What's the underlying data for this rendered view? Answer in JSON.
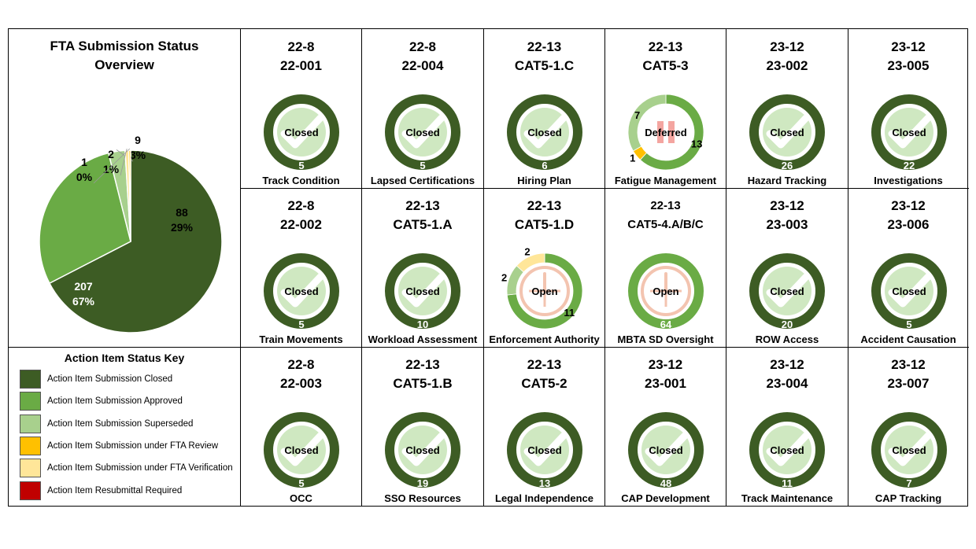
{
  "overview": {
    "title_line1": "FTA Submission Status",
    "title_line2": "Overview"
  },
  "colors": {
    "closed": "#3d5c24",
    "approved": "#6aab45",
    "superseded": "#a8d08d",
    "under_review": "#ffc000",
    "under_verification": "#ffe699",
    "resubmittal": "#c00000"
  },
  "chart_data": {
    "type": "pie",
    "title": "FTA Submission Status Overview",
    "slices": [
      {
        "status": "closed",
        "count": "207",
        "pct": "67%",
        "value": 207
      },
      {
        "status": "approved",
        "count": "88",
        "pct": "29%",
        "value": 88
      },
      {
        "status": "superseded",
        "count": "9",
        "pct": "3%",
        "value": 9
      },
      {
        "status": "under_verification",
        "count": "2",
        "pct": "1%",
        "value": 2
      },
      {
        "status": "under_review",
        "count": "1",
        "pct": "0%",
        "value": 1
      }
    ]
  },
  "key": {
    "title": "Action Item Status Key",
    "items": [
      {
        "status": "closed",
        "label": "Action Item Submission Closed"
      },
      {
        "status": "approved",
        "label": "Action Item Submission Approved"
      },
      {
        "status": "superseded",
        "label": "Action Item Submission Superseded"
      },
      {
        "status": "under_review",
        "label": "Action Item Submission under FTA Review"
      },
      {
        "status": "under_verification",
        "label": "Action Item Submission under FTA Verification"
      },
      {
        "status": "resubmittal",
        "label": "Action Item Resubmittal Required"
      }
    ]
  },
  "cells": [
    {
      "line1": "22-8",
      "line2": "22-001",
      "status_text": "Closed",
      "count": "5",
      "name": "Track Condition",
      "segments": [
        {
          "status": "closed",
          "value": 5
        }
      ]
    },
    {
      "line1": "22-8",
      "line2": "22-004",
      "status_text": "Closed",
      "count": "5",
      "name": "Lapsed Certifications",
      "segments": [
        {
          "status": "closed",
          "value": 5
        }
      ]
    },
    {
      "line1": "22-13",
      "line2": "CAT5-1.C",
      "status_text": "Closed",
      "count": "6",
      "name": "Hiring Plan",
      "segments": [
        {
          "status": "closed",
          "value": 6
        }
      ]
    },
    {
      "line1": "22-13",
      "line2": "CAT5-3",
      "status_text": "Deferred",
      "count": "",
      "name": "Fatigue Management",
      "icon": "pause",
      "segments": [
        {
          "status": "approved",
          "value": 13,
          "label": "13"
        },
        {
          "status": "under_review",
          "value": 1,
          "label": "1"
        },
        {
          "status": "superseded",
          "value": 7,
          "label": "7"
        }
      ]
    },
    {
      "line1": "23-12",
      "line2": "23-002",
      "status_text": "Closed",
      "count": "26",
      "name": "Hazard Tracking",
      "segments": [
        {
          "status": "closed",
          "value": 26
        }
      ]
    },
    {
      "line1": "23-12",
      "line2": "23-005",
      "status_text": "Closed",
      "count": "22",
      "name": "Investigations",
      "segments": [
        {
          "status": "closed",
          "value": 22
        }
      ]
    },
    {
      "line1": "22-8",
      "line2": "22-002",
      "status_text": "Closed",
      "count": "5",
      "name": "Train Movements",
      "segments": [
        {
          "status": "closed",
          "value": 5
        }
      ]
    },
    {
      "line1": "22-13",
      "line2": "CAT5-1.A",
      "status_text": "Closed",
      "count": "10",
      "name": "Workload Assessment",
      "segments": [
        {
          "status": "closed",
          "value": 10
        }
      ]
    },
    {
      "line1": "22-13",
      "line2": "CAT5-1.D",
      "status_text": "Open",
      "count": "",
      "name": "Enforcement Authority",
      "icon": "clock",
      "segments": [
        {
          "status": "approved",
          "value": 11,
          "label": "11"
        },
        {
          "status": "superseded",
          "value": 2,
          "label": "2"
        },
        {
          "status": "under_verification",
          "value": 2,
          "label": "2"
        }
      ]
    },
    {
      "line1": "22-13",
      "line2": "CAT5-4.A/B/C",
      "status_text": "Open",
      "count": "64",
      "name": "MBTA SD Oversight",
      "icon": "clock",
      "segments": [
        {
          "status": "approved",
          "value": 64
        }
      ]
    },
    {
      "line1": "23-12",
      "line2": "23-003",
      "status_text": "Closed",
      "count": "20",
      "name": "ROW Access",
      "segments": [
        {
          "status": "closed",
          "value": 20
        }
      ]
    },
    {
      "line1": "23-12",
      "line2": "23-006",
      "status_text": "Closed",
      "count": "5",
      "name": "Accident Causation",
      "segments": [
        {
          "status": "closed",
          "value": 5
        }
      ]
    },
    {
      "line1": "22-8",
      "line2": "22-003",
      "status_text": "Closed",
      "count": "5",
      "name": "OCC",
      "segments": [
        {
          "status": "closed",
          "value": 5
        }
      ]
    },
    {
      "line1": "22-13",
      "line2": "CAT5-1.B",
      "status_text": "Closed",
      "count": "19",
      "name": "SSO Resources",
      "segments": [
        {
          "status": "closed",
          "value": 19
        }
      ]
    },
    {
      "line1": "22-13",
      "line2": "CAT5-2",
      "status_text": "Closed",
      "count": "13",
      "name": "Legal Independence",
      "segments": [
        {
          "status": "closed",
          "value": 13
        }
      ]
    },
    {
      "line1": "23-12",
      "line2": "23-001",
      "status_text": "Closed",
      "count": "48",
      "name": "CAP Development",
      "segments": [
        {
          "status": "closed",
          "value": 48
        }
      ]
    },
    {
      "line1": "23-12",
      "line2": "23-004",
      "status_text": "Closed",
      "count": "11",
      "name": "Track Maintenance",
      "segments": [
        {
          "status": "closed",
          "value": 11
        }
      ]
    },
    {
      "line1": "23-12",
      "line2": "23-007",
      "status_text": "Closed",
      "count": "7",
      "name": "CAP Tracking",
      "segments": [
        {
          "status": "closed",
          "value": 7
        }
      ]
    }
  ]
}
